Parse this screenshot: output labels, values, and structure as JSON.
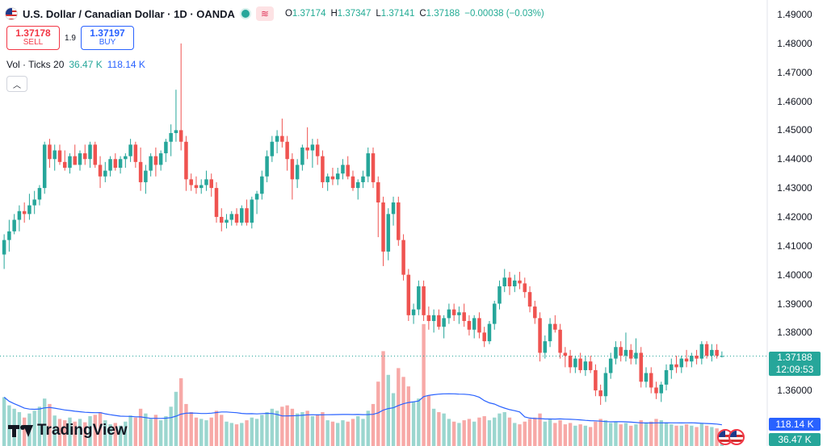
{
  "header": {
    "title": "U.S. Dollar / Canadian Dollar · 1D · OANDA",
    "ohlc": [
      {
        "k": "O",
        "v": "1.37174"
      },
      {
        "k": "H",
        "v": "1.37347"
      },
      {
        "k": "L",
        "v": "1.37141"
      },
      {
        "k": "C",
        "v": "1.37188"
      },
      {
        "k": "",
        "v": "−0.00038 (−0.03%)"
      }
    ]
  },
  "trade": {
    "sell_price": "1.37178",
    "sell_label": "SELL",
    "spread": "1.9",
    "buy_price": "1.37197",
    "buy_label": "BUY"
  },
  "volume_legend": {
    "label": "Vol · Ticks 20",
    "value": "36.47 K",
    "ma_value": "118.14 K"
  },
  "price_axis_labels": [
    "1.49000",
    "1.48000",
    "1.47000",
    "1.46000",
    "1.45000",
    "1.44000",
    "1.43000",
    "1.42000",
    "1.41000",
    "1.40000",
    "1.39000",
    "1.38000",
    "1.36000"
  ],
  "last_price": {
    "price": "1.37188",
    "countdown": "12:09:53",
    "value": 1.37188
  },
  "volume_tags": {
    "ma": "118.14 K",
    "vol": "36.47 K"
  },
  "logo_text": "TradingView",
  "colors": {
    "up": "#26a69a",
    "down": "#ef5350",
    "ma": "#2962ff",
    "up_vol": "#9bd6cf",
    "down_vol": "#f7a9a7"
  },
  "chart_data": {
    "type": "candlestick",
    "symbol": "U.S. Dollar / Canadian Dollar",
    "interval": "1D",
    "source": "OANDA",
    "ylim": [
      1.353,
      1.493
    ],
    "grid": false,
    "candles": [
      {
        "o": 1.407,
        "h": 1.414,
        "l": 1.402,
        "c": 1.412,
        "v": 0.72
      },
      {
        "o": 1.412,
        "h": 1.419,
        "l": 1.408,
        "c": 1.415,
        "v": 0.6
      },
      {
        "o": 1.415,
        "h": 1.421,
        "l": 1.414,
        "c": 1.419,
        "v": 0.55
      },
      {
        "o": 1.419,
        "h": 1.424,
        "l": 1.415,
        "c": 1.422,
        "v": 0.5
      },
      {
        "o": 1.422,
        "h": 1.425,
        "l": 1.418,
        "c": 1.421,
        "v": 0.42
      },
      {
        "o": 1.421,
        "h": 1.428,
        "l": 1.419,
        "c": 1.424,
        "v": 0.48
      },
      {
        "o": 1.424,
        "h": 1.429,
        "l": 1.421,
        "c": 1.426,
        "v": 0.52
      },
      {
        "o": 1.426,
        "h": 1.431,
        "l": 1.424,
        "c": 1.43,
        "v": 0.58
      },
      {
        "o": 1.43,
        "h": 1.446,
        "l": 1.428,
        "c": 1.445,
        "v": 0.7
      },
      {
        "o": 1.445,
        "h": 1.447,
        "l": 1.437,
        "c": 1.44,
        "v": 0.62
      },
      {
        "o": 1.44,
        "h": 1.445,
        "l": 1.436,
        "c": 1.443,
        "v": 0.45
      },
      {
        "o": 1.443,
        "h": 1.445,
        "l": 1.438,
        "c": 1.439,
        "v": 0.4
      },
      {
        "o": 1.439,
        "h": 1.443,
        "l": 1.436,
        "c": 1.437,
        "v": 0.38
      },
      {
        "o": 1.437,
        "h": 1.442,
        "l": 1.435,
        "c": 1.441,
        "v": 0.42
      },
      {
        "o": 1.441,
        "h": 1.445,
        "l": 1.438,
        "c": 1.438,
        "v": 0.36
      },
      {
        "o": 1.438,
        "h": 1.443,
        "l": 1.436,
        "c": 1.442,
        "v": 0.4
      },
      {
        "o": 1.442,
        "h": 1.445,
        "l": 1.438,
        "c": 1.44,
        "v": 0.35
      },
      {
        "o": 1.44,
        "h": 1.446,
        "l": 1.437,
        "c": 1.445,
        "v": 0.44
      },
      {
        "o": 1.445,
        "h": 1.446,
        "l": 1.437,
        "c": 1.438,
        "v": 0.46
      },
      {
        "o": 1.438,
        "h": 1.441,
        "l": 1.43,
        "c": 1.434,
        "v": 0.5
      },
      {
        "o": 1.434,
        "h": 1.439,
        "l": 1.432,
        "c": 1.436,
        "v": 0.38
      },
      {
        "o": 1.436,
        "h": 1.441,
        "l": 1.434,
        "c": 1.44,
        "v": 0.32
      },
      {
        "o": 1.44,
        "h": 1.442,
        "l": 1.436,
        "c": 1.437,
        "v": 0.34
      },
      {
        "o": 1.437,
        "h": 1.441,
        "l": 1.435,
        "c": 1.44,
        "v": 0.3
      },
      {
        "o": 1.44,
        "h": 1.442,
        "l": 1.437,
        "c": 1.441,
        "v": 0.36
      },
      {
        "o": 1.441,
        "h": 1.447,
        "l": 1.439,
        "c": 1.445,
        "v": 0.45
      },
      {
        "o": 1.445,
        "h": 1.446,
        "l": 1.437,
        "c": 1.439,
        "v": 0.42
      },
      {
        "o": 1.439,
        "h": 1.444,
        "l": 1.429,
        "c": 1.432,
        "v": 0.55
      },
      {
        "o": 1.432,
        "h": 1.438,
        "l": 1.428,
        "c": 1.436,
        "v": 0.48
      },
      {
        "o": 1.436,
        "h": 1.442,
        "l": 1.434,
        "c": 1.441,
        "v": 0.4
      },
      {
        "o": 1.441,
        "h": 1.444,
        "l": 1.434,
        "c": 1.438,
        "v": 0.46
      },
      {
        "o": 1.438,
        "h": 1.443,
        "l": 1.436,
        "c": 1.442,
        "v": 0.38
      },
      {
        "o": 1.442,
        "h": 1.447,
        "l": 1.439,
        "c": 1.446,
        "v": 0.44
      },
      {
        "o": 1.446,
        "h": 1.452,
        "l": 1.441,
        "c": 1.449,
        "v": 0.58
      },
      {
        "o": 1.449,
        "h": 1.464,
        "l": 1.446,
        "c": 1.45,
        "v": 0.8
      },
      {
        "o": 1.45,
        "h": 1.48,
        "l": 1.443,
        "c": 1.446,
        "v": 1.0
      },
      {
        "o": 1.446,
        "h": 1.448,
        "l": 1.429,
        "c": 1.433,
        "v": 0.62
      },
      {
        "o": 1.433,
        "h": 1.435,
        "l": 1.429,
        "c": 1.431,
        "v": 0.5
      },
      {
        "o": 1.431,
        "h": 1.434,
        "l": 1.428,
        "c": 1.43,
        "v": 0.42
      },
      {
        "o": 1.43,
        "h": 1.433,
        "l": 1.428,
        "c": 1.431,
        "v": 0.4
      },
      {
        "o": 1.431,
        "h": 1.436,
        "l": 1.429,
        "c": 1.433,
        "v": 0.38
      },
      {
        "o": 1.433,
        "h": 1.435,
        "l": 1.427,
        "c": 1.43,
        "v": 0.42
      },
      {
        "o": 1.43,
        "h": 1.432,
        "l": 1.418,
        "c": 1.42,
        "v": 0.52
      },
      {
        "o": 1.42,
        "h": 1.423,
        "l": 1.415,
        "c": 1.418,
        "v": 0.46
      },
      {
        "o": 1.418,
        "h": 1.421,
        "l": 1.416,
        "c": 1.419,
        "v": 0.36
      },
      {
        "o": 1.419,
        "h": 1.422,
        "l": 1.417,
        "c": 1.421,
        "v": 0.34
      },
      {
        "o": 1.421,
        "h": 1.423,
        "l": 1.417,
        "c": 1.418,
        "v": 0.32
      },
      {
        "o": 1.418,
        "h": 1.424,
        "l": 1.417,
        "c": 1.423,
        "v": 0.34
      },
      {
        "o": 1.423,
        "h": 1.426,
        "l": 1.417,
        "c": 1.418,
        "v": 0.38
      },
      {
        "o": 1.418,
        "h": 1.427,
        "l": 1.416,
        "c": 1.426,
        "v": 0.42
      },
      {
        "o": 1.426,
        "h": 1.429,
        "l": 1.421,
        "c": 1.428,
        "v": 0.4
      },
      {
        "o": 1.428,
        "h": 1.436,
        "l": 1.426,
        "c": 1.434,
        "v": 0.46
      },
      {
        "o": 1.434,
        "h": 1.443,
        "l": 1.432,
        "c": 1.441,
        "v": 0.5
      },
      {
        "o": 1.441,
        "h": 1.448,
        "l": 1.439,
        "c": 1.446,
        "v": 0.55
      },
      {
        "o": 1.446,
        "h": 1.45,
        "l": 1.442,
        "c": 1.448,
        "v": 0.52
      },
      {
        "o": 1.448,
        "h": 1.454,
        "l": 1.444,
        "c": 1.446,
        "v": 0.58
      },
      {
        "o": 1.446,
        "h": 1.448,
        "l": 1.436,
        "c": 1.44,
        "v": 0.6
      },
      {
        "o": 1.44,
        "h": 1.442,
        "l": 1.426,
        "c": 1.433,
        "v": 0.55
      },
      {
        "o": 1.433,
        "h": 1.44,
        "l": 1.43,
        "c": 1.438,
        "v": 0.48
      },
      {
        "o": 1.438,
        "h": 1.445,
        "l": 1.436,
        "c": 1.444,
        "v": 0.5
      },
      {
        "o": 1.444,
        "h": 1.451,
        "l": 1.44,
        "c": 1.443,
        "v": 0.52
      },
      {
        "o": 1.443,
        "h": 1.447,
        "l": 1.437,
        "c": 1.445,
        "v": 0.44
      },
      {
        "o": 1.445,
        "h": 1.447,
        "l": 1.438,
        "c": 1.441,
        "v": 0.46
      },
      {
        "o": 1.441,
        "h": 1.443,
        "l": 1.43,
        "c": 1.432,
        "v": 0.5
      },
      {
        "o": 1.432,
        "h": 1.435,
        "l": 1.429,
        "c": 1.434,
        "v": 0.38
      },
      {
        "o": 1.434,
        "h": 1.437,
        "l": 1.431,
        "c": 1.433,
        "v": 0.36
      },
      {
        "o": 1.433,
        "h": 1.437,
        "l": 1.431,
        "c": 1.435,
        "v": 0.34
      },
      {
        "o": 1.435,
        "h": 1.44,
        "l": 1.433,
        "c": 1.438,
        "v": 0.38
      },
      {
        "o": 1.438,
        "h": 1.441,
        "l": 1.433,
        "c": 1.434,
        "v": 0.36
      },
      {
        "o": 1.434,
        "h": 1.436,
        "l": 1.429,
        "c": 1.43,
        "v": 0.4
      },
      {
        "o": 1.43,
        "h": 1.433,
        "l": 1.426,
        "c": 1.432,
        "v": 0.44
      },
      {
        "o": 1.432,
        "h": 1.436,
        "l": 1.43,
        "c": 1.434,
        "v": 0.4
      },
      {
        "o": 1.434,
        "h": 1.444,
        "l": 1.432,
        "c": 1.442,
        "v": 0.52
      },
      {
        "o": 1.442,
        "h": 1.444,
        "l": 1.43,
        "c": 1.432,
        "v": 0.62
      },
      {
        "o": 1.432,
        "h": 1.434,
        "l": 1.413,
        "c": 1.425,
        "v": 0.95
      },
      {
        "o": 1.425,
        "h": 1.427,
        "l": 1.403,
        "c": 1.408,
        "v": 1.4
      },
      {
        "o": 1.408,
        "h": 1.423,
        "l": 1.405,
        "c": 1.421,
        "v": 1.05
      },
      {
        "o": 1.421,
        "h": 1.427,
        "l": 1.417,
        "c": 1.425,
        "v": 0.78
      },
      {
        "o": 1.425,
        "h": 1.427,
        "l": 1.41,
        "c": 1.412,
        "v": 1.15
      },
      {
        "o": 1.412,
        "h": 1.414,
        "l": 1.398,
        "c": 1.4,
        "v": 1.02
      },
      {
        "o": 1.4,
        "h": 1.402,
        "l": 1.384,
        "c": 1.386,
        "v": 0.88
      },
      {
        "o": 1.386,
        "h": 1.39,
        "l": 1.383,
        "c": 1.388,
        "v": 0.65
      },
      {
        "o": 1.388,
        "h": 1.398,
        "l": 1.386,
        "c": 1.396,
        "v": 0.7
      },
      {
        "o": 1.396,
        "h": 1.398,
        "l": 1.384,
        "c": 1.386,
        "v": 1.8
      },
      {
        "o": 1.386,
        "h": 1.389,
        "l": 1.381,
        "c": 1.384,
        "v": 0.75
      },
      {
        "o": 1.384,
        "h": 1.388,
        "l": 1.38,
        "c": 1.386,
        "v": 0.55
      },
      {
        "o": 1.386,
        "h": 1.388,
        "l": 1.381,
        "c": 1.382,
        "v": 0.5
      },
      {
        "o": 1.382,
        "h": 1.386,
        "l": 1.378,
        "c": 1.385,
        "v": 0.48
      },
      {
        "o": 1.385,
        "h": 1.39,
        "l": 1.383,
        "c": 1.388,
        "v": 0.4
      },
      {
        "o": 1.388,
        "h": 1.39,
        "l": 1.384,
        "c": 1.386,
        "v": 0.36
      },
      {
        "o": 1.386,
        "h": 1.389,
        "l": 1.383,
        "c": 1.387,
        "v": 0.34
      },
      {
        "o": 1.387,
        "h": 1.39,
        "l": 1.382,
        "c": 1.384,
        "v": 0.38
      },
      {
        "o": 1.384,
        "h": 1.386,
        "l": 1.379,
        "c": 1.381,
        "v": 0.4
      },
      {
        "o": 1.381,
        "h": 1.386,
        "l": 1.378,
        "c": 1.385,
        "v": 0.36
      },
      {
        "o": 1.385,
        "h": 1.387,
        "l": 1.378,
        "c": 1.38,
        "v": 0.42
      },
      {
        "o": 1.38,
        "h": 1.382,
        "l": 1.375,
        "c": 1.377,
        "v": 0.44
      },
      {
        "o": 1.377,
        "h": 1.384,
        "l": 1.376,
        "c": 1.383,
        "v": 0.38
      },
      {
        "o": 1.383,
        "h": 1.391,
        "l": 1.381,
        "c": 1.39,
        "v": 0.42
      },
      {
        "o": 1.39,
        "h": 1.398,
        "l": 1.388,
        "c": 1.396,
        "v": 0.48
      },
      {
        "o": 1.396,
        "h": 1.402,
        "l": 1.394,
        "c": 1.399,
        "v": 0.5
      },
      {
        "o": 1.399,
        "h": 1.401,
        "l": 1.393,
        "c": 1.396,
        "v": 0.42
      },
      {
        "o": 1.396,
        "h": 1.4,
        "l": 1.394,
        "c": 1.398,
        "v": 0.34
      },
      {
        "o": 1.398,
        "h": 1.401,
        "l": 1.395,
        "c": 1.397,
        "v": 0.32
      },
      {
        "o": 1.397,
        "h": 1.399,
        "l": 1.392,
        "c": 1.394,
        "v": 0.36
      },
      {
        "o": 1.394,
        "h": 1.396,
        "l": 1.387,
        "c": 1.389,
        "v": 0.4
      },
      {
        "o": 1.389,
        "h": 1.391,
        "l": 1.383,
        "c": 1.385,
        "v": 0.42
      },
      {
        "o": 1.385,
        "h": 1.387,
        "l": 1.37,
        "c": 1.373,
        "v": 0.48
      },
      {
        "o": 1.373,
        "h": 1.379,
        "l": 1.371,
        "c": 1.377,
        "v": 0.36
      },
      {
        "o": 1.377,
        "h": 1.385,
        "l": 1.375,
        "c": 1.383,
        "v": 0.4
      },
      {
        "o": 1.383,
        "h": 1.386,
        "l": 1.38,
        "c": 1.381,
        "v": 0.34
      },
      {
        "o": 1.381,
        "h": 1.383,
        "l": 1.371,
        "c": 1.373,
        "v": 0.38
      },
      {
        "o": 1.373,
        "h": 1.375,
        "l": 1.368,
        "c": 1.372,
        "v": 0.32
      },
      {
        "o": 1.372,
        "h": 1.374,
        "l": 1.366,
        "c": 1.368,
        "v": 0.34
      },
      {
        "o": 1.368,
        "h": 1.372,
        "l": 1.366,
        "c": 1.371,
        "v": 0.3
      },
      {
        "o": 1.371,
        "h": 1.373,
        "l": 1.366,
        "c": 1.367,
        "v": 0.32
      },
      {
        "o": 1.367,
        "h": 1.372,
        "l": 1.365,
        "c": 1.37,
        "v": 0.3
      },
      {
        "o": 1.37,
        "h": 1.372,
        "l": 1.366,
        "c": 1.367,
        "v": 0.28
      },
      {
        "o": 1.367,
        "h": 1.369,
        "l": 1.358,
        "c": 1.36,
        "v": 0.36
      },
      {
        "o": 1.36,
        "h": 1.362,
        "l": 1.355,
        "c": 1.358,
        "v": 0.4
      },
      {
        "o": 1.358,
        "h": 1.368,
        "l": 1.356,
        "c": 1.366,
        "v": 0.38
      },
      {
        "o": 1.366,
        "h": 1.373,
        "l": 1.364,
        "c": 1.371,
        "v": 0.34
      },
      {
        "o": 1.371,
        "h": 1.377,
        "l": 1.369,
        "c": 1.375,
        "v": 0.36
      },
      {
        "o": 1.375,
        "h": 1.377,
        "l": 1.37,
        "c": 1.372,
        "v": 0.32
      },
      {
        "o": 1.372,
        "h": 1.38,
        "l": 1.37,
        "c": 1.374,
        "v": 0.34
      },
      {
        "o": 1.374,
        "h": 1.376,
        "l": 1.369,
        "c": 1.371,
        "v": 0.3
      },
      {
        "o": 1.371,
        "h": 1.378,
        "l": 1.369,
        "c": 1.373,
        "v": 0.32
      },
      {
        "o": 1.373,
        "h": 1.375,
        "l": 1.361,
        "c": 1.363,
        "v": 0.38
      },
      {
        "o": 1.363,
        "h": 1.368,
        "l": 1.361,
        "c": 1.366,
        "v": 0.34
      },
      {
        "o": 1.366,
        "h": 1.368,
        "l": 1.359,
        "c": 1.361,
        "v": 0.36
      },
      {
        "o": 1.361,
        "h": 1.363,
        "l": 1.357,
        "c": 1.359,
        "v": 0.4
      },
      {
        "o": 1.359,
        "h": 1.363,
        "l": 1.356,
        "c": 1.362,
        "v": 0.38
      },
      {
        "o": 1.362,
        "h": 1.369,
        "l": 1.36,
        "c": 1.367,
        "v": 0.34
      },
      {
        "o": 1.367,
        "h": 1.371,
        "l": 1.364,
        "c": 1.369,
        "v": 0.32
      },
      {
        "o": 1.369,
        "h": 1.372,
        "l": 1.366,
        "c": 1.368,
        "v": 0.3
      },
      {
        "o": 1.368,
        "h": 1.372,
        "l": 1.366,
        "c": 1.371,
        "v": 0.3
      },
      {
        "o": 1.371,
        "h": 1.374,
        "l": 1.368,
        "c": 1.37,
        "v": 0.32
      },
      {
        "o": 1.37,
        "h": 1.373,
        "l": 1.368,
        "c": 1.372,
        "v": 0.3
      },
      {
        "o": 1.372,
        "h": 1.374,
        "l": 1.369,
        "c": 1.371,
        "v": 0.28
      },
      {
        "o": 1.371,
        "h": 1.377,
        "l": 1.369,
        "c": 1.376,
        "v": 0.34
      },
      {
        "o": 1.376,
        "h": 1.377,
        "l": 1.371,
        "c": 1.372,
        "v": 0.3
      },
      {
        "o": 1.372,
        "h": 1.376,
        "l": 1.37,
        "c": 1.374,
        "v": 0.28
      },
      {
        "o": 1.374,
        "h": 1.376,
        "l": 1.371,
        "c": 1.372,
        "v": 0.26
      },
      {
        "o": 1.37174,
        "h": 1.37347,
        "l": 1.37141,
        "c": 1.37188,
        "v": 0.1
      }
    ]
  }
}
